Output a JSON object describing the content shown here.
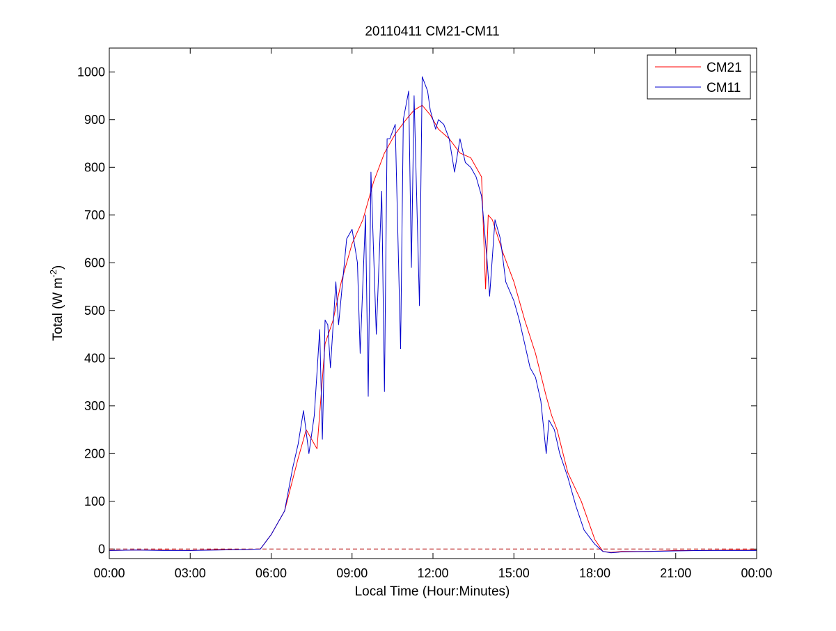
{
  "chart_data": {
    "type": "line",
    "title": "20110411 CM21-CM11",
    "xlabel": "Local Time (Hour:Minutes)",
    "ylabel": {
      "base": "Total (W m",
      "superscript": "-2",
      "suffix": ")"
    },
    "xlim": [
      0,
      24
    ],
    "ylim": [
      -20,
      1050
    ],
    "x_ticks": [
      0,
      3,
      6,
      9,
      12,
      15,
      18,
      21,
      24
    ],
    "x_tick_labels": [
      "00:00",
      "03:00",
      "06:00",
      "09:00",
      "12:00",
      "15:00",
      "18:00",
      "21:00",
      "00:00"
    ],
    "y_ticks": [
      0,
      100,
      200,
      300,
      400,
      500,
      600,
      700,
      800,
      900,
      1000
    ],
    "y_tick_labels": [
      "0",
      "100",
      "200",
      "300",
      "400",
      "500",
      "600",
      "700",
      "800",
      "900",
      "1000"
    ],
    "grid": false,
    "legend": "top-right",
    "reference_line": {
      "y": 0,
      "style": "dashed",
      "color": "#b00000"
    },
    "series": [
      {
        "name": "CM21",
        "color": "#ff0000",
        "x": [
          0,
          1,
          2,
          3,
          4,
          5,
          5.6,
          6,
          6.5,
          7,
          7.3,
          7.7,
          8,
          8.3,
          8.6,
          9,
          9.4,
          9.8,
          10.2,
          10.6,
          11,
          11.3,
          11.6,
          11.9,
          12.2,
          12.6,
          13,
          13.4,
          13.8,
          13.95,
          14.05,
          14.2,
          14.6,
          15,
          15.4,
          15.8,
          16.2,
          16.4,
          16.6,
          17,
          17.5,
          18,
          18.3,
          18.6,
          19,
          20,
          21,
          22,
          23,
          24
        ],
        "y": [
          -3,
          -2,
          -2,
          -3,
          -1,
          -1,
          0,
          30,
          80,
          190,
          250,
          210,
          430,
          480,
          560,
          640,
          690,
          770,
          830,
          870,
          900,
          920,
          930,
          910,
          880,
          860,
          830,
          820,
          780,
          545,
          700,
          690,
          620,
          560,
          480,
          410,
          320,
          280,
          250,
          160,
          100,
          20,
          -5,
          -7,
          -5,
          -5,
          -3,
          -3,
          -2,
          -2
        ]
      },
      {
        "name": "CM11",
        "color": "#0000cc",
        "x": [
          0,
          1,
          2,
          3,
          4,
          5,
          5.6,
          6,
          6.5,
          6.8,
          7,
          7.2,
          7.4,
          7.6,
          7.8,
          7.9,
          8,
          8.1,
          8.2,
          8.4,
          8.5,
          8.8,
          9,
          9.2,
          9.3,
          9.5,
          9.6,
          9.7,
          9.9,
          10.1,
          10.2,
          10.3,
          10.4,
          10.6,
          10.8,
          10.9,
          11.1,
          11.2,
          11.3,
          11.5,
          11.6,
          11.8,
          11.9,
          12.1,
          12.2,
          12.4,
          12.6,
          12.8,
          13,
          13.2,
          13.4,
          13.6,
          13.8,
          14,
          14.1,
          14.3,
          14.5,
          14.7,
          15,
          15.2,
          15.4,
          15.6,
          15.8,
          16,
          16.2,
          16.3,
          16.5,
          16.7,
          17,
          17.3,
          17.6,
          18,
          18.3,
          18.6,
          19,
          20,
          21,
          22,
          23,
          24
        ],
        "y": [
          -3,
          -2,
          -3,
          -3,
          -2,
          -1,
          0,
          30,
          80,
          170,
          220,
          290,
          200,
          280,
          460,
          230,
          480,
          470,
          380,
          560,
          470,
          650,
          670,
          600,
          410,
          700,
          320,
          790,
          450,
          750,
          330,
          860,
          860,
          890,
          420,
          900,
          960,
          590,
          950,
          510,
          990,
          960,
          920,
          880,
          900,
          890,
          860,
          790,
          860,
          810,
          800,
          780,
          740,
          610,
          530,
          690,
          650,
          560,
          520,
          480,
          430,
          380,
          360,
          310,
          200,
          270,
          250,
          200,
          150,
          90,
          40,
          10,
          -5,
          -8,
          -6,
          -5,
          -4,
          -3,
          -3,
          -3
        ]
      }
    ]
  }
}
